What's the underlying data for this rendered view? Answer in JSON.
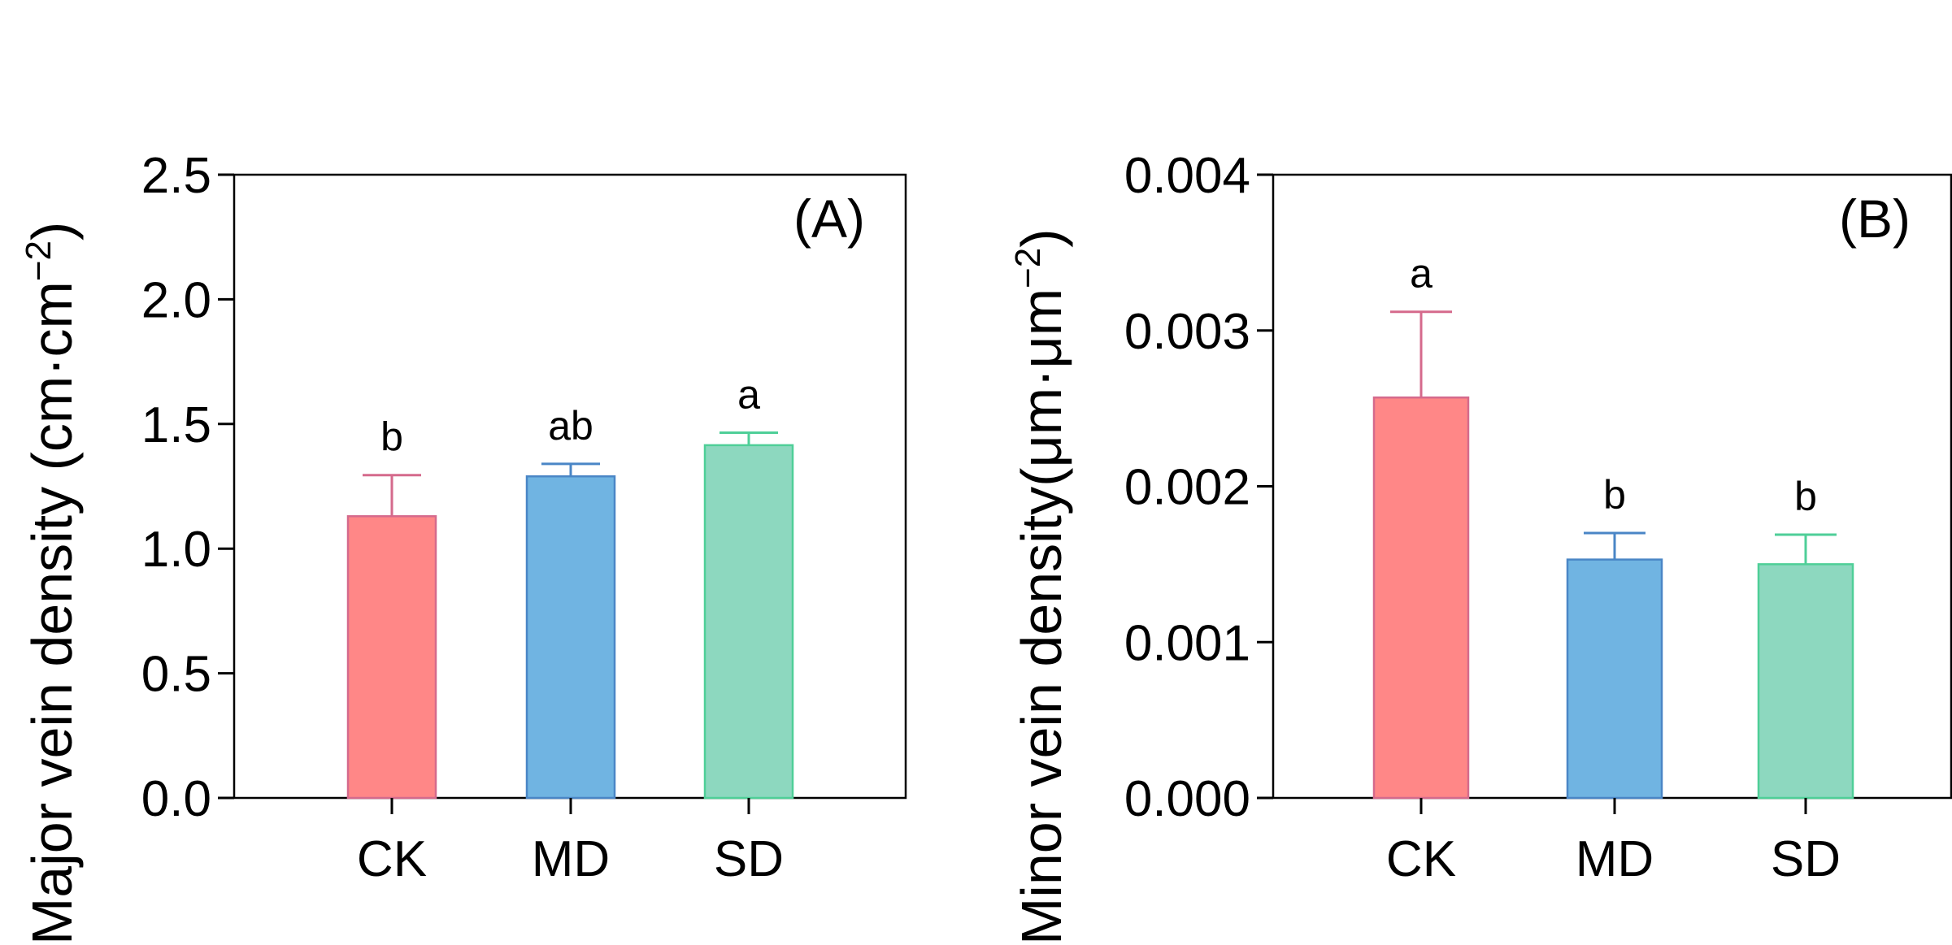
{
  "chart_data": [
    {
      "type": "bar",
      "panel": "(A)",
      "categories": [
        "CK",
        "MD",
        "SD"
      ],
      "values": [
        1.13,
        1.29,
        1.415
      ],
      "errors": [
        0.165,
        0.05,
        0.05
      ],
      "significance": [
        "b",
        "ab",
        "a"
      ],
      "colors": [
        "#ff8787",
        "#70b4e2",
        "#8dd8bf"
      ],
      "stroke_colors": [
        "#d56a8c",
        "#4a86c6",
        "#4fcf98"
      ],
      "ylim": [
        0,
        2.5
      ],
      "yticks": [
        "0.0",
        "0.5",
        "1.0",
        "1.5",
        "2.0",
        "2.5"
      ],
      "ylabel": "Major vein density (cm·cm",
      "ylabel_sup": "−2",
      "ylabel_close": ")",
      "xlabel": ""
    },
    {
      "type": "bar",
      "panel": "(B)",
      "categories": [
        "CK",
        "MD",
        "SD"
      ],
      "values": [
        0.00257,
        0.00153,
        0.0015
      ],
      "errors": [
        0.00055,
        0.00017,
        0.00019
      ],
      "significance": [
        "a",
        "b",
        "b"
      ],
      "colors": [
        "#ff8787",
        "#70b4e2",
        "#8dd8bf"
      ],
      "stroke_colors": [
        "#d56a8c",
        "#4a86c6",
        "#4fcf98"
      ],
      "ylim": [
        0,
        0.004
      ],
      "yticks": [
        "0.000",
        "0.001",
        "0.002",
        "0.003",
        "0.004"
      ],
      "ylabel": "Minor vein density(μm·μm",
      "ylabel_sup": "−2",
      "ylabel_close": ")",
      "xlabel": ""
    }
  ]
}
